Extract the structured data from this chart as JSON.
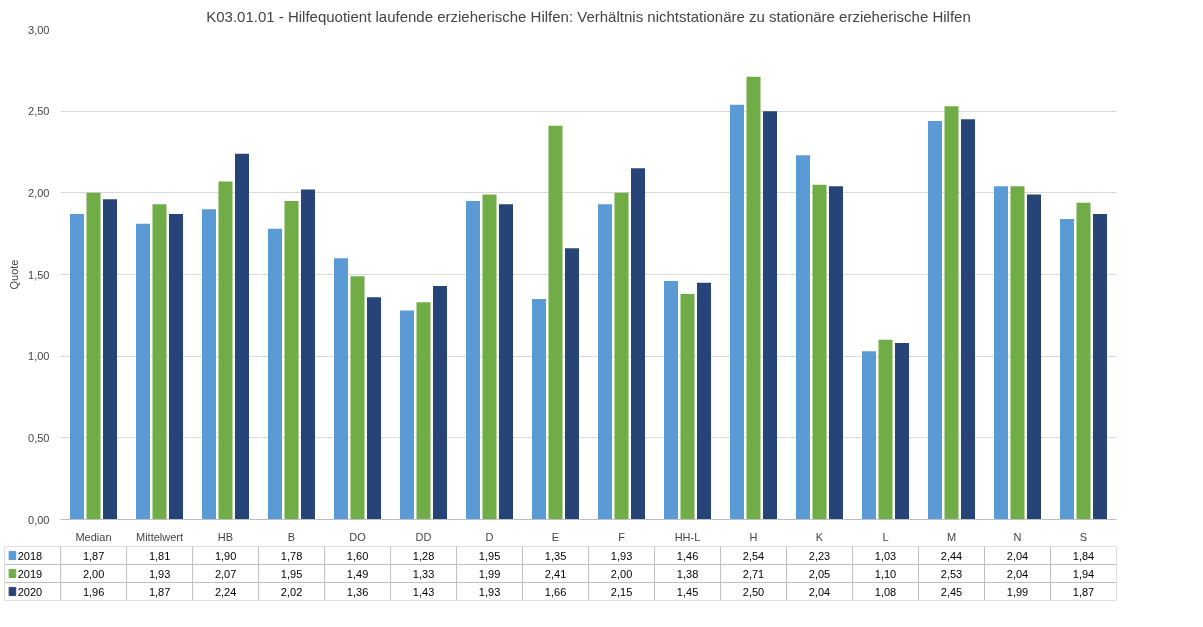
{
  "chart_data": {
    "type": "bar",
    "title": "K03.01.01 - Hilfequotient laufende erzieherische Hilfen: Verhältnis nichtstationäre zu stationäre erzieherische Hilfen",
    "ylabel": "Quote",
    "categories": [
      "Median",
      "Mittelwert",
      "HB",
      "B",
      "DO",
      "DD",
      "D",
      "E",
      "F",
      "HH-L",
      "H",
      "K",
      "L",
      "M",
      "N",
      "S"
    ],
    "series": [
      {
        "name": "2018",
        "color": "#5b9bd5",
        "values": [
          1.87,
          1.81,
          1.9,
          1.78,
          1.6,
          1.28,
          1.95,
          1.35,
          1.93,
          1.46,
          2.54,
          2.23,
          1.03,
          2.44,
          2.04,
          1.84
        ],
        "value_labels": [
          "1,87",
          "1,81",
          "1,90",
          "1,78",
          "1,60",
          "1,28",
          "1,95",
          "1,35",
          "1,93",
          "1,46",
          "2,54",
          "2,23",
          "1,03",
          "2,44",
          "2,04",
          "1,84"
        ]
      },
      {
        "name": "2019",
        "color": "#70ad47",
        "values": [
          2.0,
          1.93,
          2.07,
          1.95,
          1.49,
          1.33,
          1.99,
          2.41,
          2.0,
          1.38,
          2.71,
          2.05,
          1.1,
          2.53,
          2.04,
          1.94
        ],
        "value_labels": [
          "2,00",
          "1,93",
          "2,07",
          "1,95",
          "1,49",
          "1,33",
          "1,99",
          "2,41",
          "2,00",
          "1,38",
          "2,71",
          "2,05",
          "1,10",
          "2,53",
          "2,04",
          "1,94"
        ]
      },
      {
        "name": "2020",
        "color": "#264478",
        "values": [
          1.96,
          1.87,
          2.24,
          2.02,
          1.36,
          1.43,
          1.93,
          1.66,
          2.15,
          1.45,
          2.5,
          2.04,
          1.08,
          2.45,
          1.99,
          1.87
        ],
        "value_labels": [
          "1,96",
          "1,87",
          "2,24",
          "2,02",
          "1,36",
          "1,43",
          "1,93",
          "1,66",
          "2,15",
          "1,45",
          "2,50",
          "2,04",
          "1,08",
          "2,45",
          "1,99",
          "1,87"
        ]
      }
    ],
    "ylim": [
      0,
      3
    ],
    "yticks": [
      {
        "value": 0,
        "label": "0,00"
      },
      {
        "value": 0.5,
        "label": "0,50"
      },
      {
        "value": 1,
        "label": "1,00"
      },
      {
        "value": 1.5,
        "label": "1,50"
      },
      {
        "value": 2,
        "label": "2,00"
      },
      {
        "value": 2.5,
        "label": "2,50"
      },
      {
        "value": 3,
        "label": "3,00"
      }
    ],
    "grid": "y",
    "legend": "bottom left"
  }
}
